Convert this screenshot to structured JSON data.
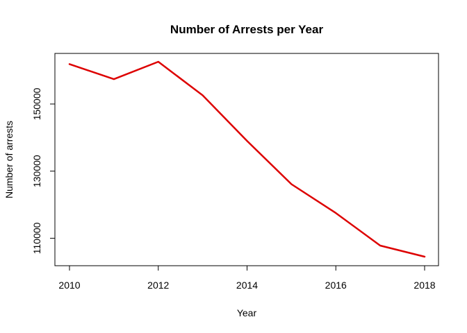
{
  "chart_data": {
    "type": "line",
    "title": "Number of Arrests per Year",
    "xlabel": "Year",
    "ylabel": "Number of arrests",
    "x": [
      2010,
      2011,
      2012,
      2013,
      2014,
      2015,
      2016,
      2017,
      2018
    ],
    "series": [
      {
        "values": [
          161900,
          157400,
          162600,
          152600,
          139000,
          126100,
          117500,
          107800,
          104500
        ],
        "color": "#dd0000"
      }
    ],
    "xlim": [
      2010,
      2018
    ],
    "ylim": [
      104500,
      162600
    ],
    "x_ticks": [
      2010,
      2012,
      2014,
      2016,
      2018
    ],
    "x_tick_labels": [
      "2010",
      "2012",
      "2014",
      "2016",
      "2018"
    ],
    "y_ticks": [
      110000,
      130000,
      150000
    ],
    "y_tick_labels": [
      "110000",
      "130000",
      "150000"
    ],
    "grid": false,
    "legend": "none"
  }
}
